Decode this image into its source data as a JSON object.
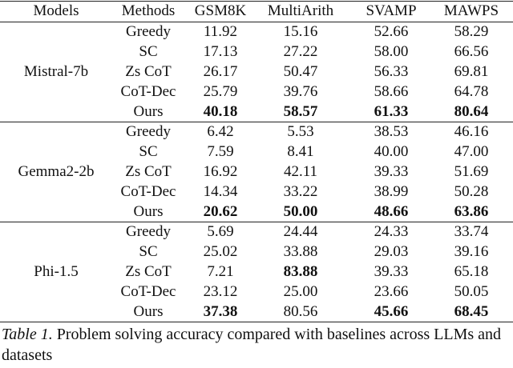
{
  "table": {
    "columns": [
      "Models",
      "Methods",
      "GSM8K",
      "MultiArith",
      "SVAMP",
      "MAWPS"
    ],
    "groups": [
      {
        "model": "Mistral-7b",
        "rows": [
          {
            "method": "Greedy",
            "values": [
              "11.92",
              "15.16",
              "52.66",
              "58.29"
            ],
            "bold": [
              false,
              false,
              false,
              false
            ]
          },
          {
            "method": "SC",
            "values": [
              "17.13",
              "27.22",
              "58.00",
              "66.56"
            ],
            "bold": [
              false,
              false,
              false,
              false
            ]
          },
          {
            "method": "Zs CoT",
            "values": [
              "26.17",
              "50.47",
              "56.33",
              "69.81"
            ],
            "bold": [
              false,
              false,
              false,
              false
            ]
          },
          {
            "method": "CoT-Dec",
            "values": [
              "25.79",
              "39.76",
              "58.66",
              "64.78"
            ],
            "bold": [
              false,
              false,
              false,
              false
            ]
          },
          {
            "method": "Ours",
            "values": [
              "40.18",
              "58.57",
              "61.33",
              "80.64"
            ],
            "bold": [
              true,
              true,
              true,
              true
            ]
          }
        ]
      },
      {
        "model": "Gemma2-2b",
        "rows": [
          {
            "method": "Greedy",
            "values": [
              "6.42",
              "5.53",
              "38.53",
              "46.16"
            ],
            "bold": [
              false,
              false,
              false,
              false
            ]
          },
          {
            "method": "SC",
            "values": [
              "7.59",
              "8.41",
              "40.00",
              "47.00"
            ],
            "bold": [
              false,
              false,
              false,
              false
            ]
          },
          {
            "method": "Zs CoT",
            "values": [
              "16.92",
              "42.11",
              "39.33",
              "51.69"
            ],
            "bold": [
              false,
              false,
              false,
              false
            ]
          },
          {
            "method": "CoT-Dec",
            "values": [
              "14.34",
              "33.22",
              "38.99",
              "50.28"
            ],
            "bold": [
              false,
              false,
              false,
              false
            ]
          },
          {
            "method": "Ours",
            "values": [
              "20.62",
              "50.00",
              "48.66",
              "63.86"
            ],
            "bold": [
              true,
              true,
              true,
              true
            ]
          }
        ]
      },
      {
        "model": "Phi-1.5",
        "rows": [
          {
            "method": "Greedy",
            "values": [
              "5.69",
              "24.44",
              "24.33",
              "33.74"
            ],
            "bold": [
              false,
              false,
              false,
              false
            ]
          },
          {
            "method": "SC",
            "values": [
              "25.02",
              "33.88",
              "29.03",
              "39.16"
            ],
            "bold": [
              false,
              false,
              false,
              false
            ]
          },
          {
            "method": "Zs CoT",
            "values": [
              "7.21",
              "83.88",
              "39.33",
              "65.18"
            ],
            "bold": [
              false,
              true,
              false,
              false
            ]
          },
          {
            "method": "CoT-Dec",
            "values": [
              "23.12",
              "25.00",
              "23.66",
              "50.05"
            ],
            "bold": [
              false,
              false,
              false,
              false
            ]
          },
          {
            "method": "Ours",
            "values": [
              "37.38",
              "80.56",
              "45.66",
              "68.45"
            ],
            "bold": [
              true,
              false,
              true,
              true
            ]
          }
        ]
      }
    ]
  },
  "caption": {
    "label": "Table 1.",
    "text": "Problem solving accuracy compared with baselines across LLMs and datasets"
  }
}
